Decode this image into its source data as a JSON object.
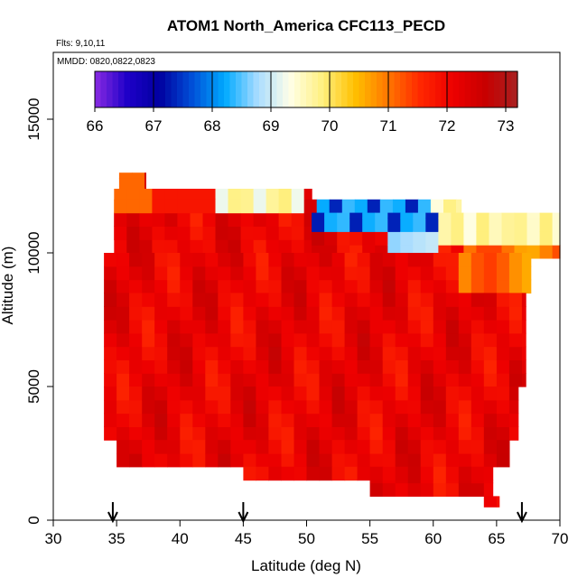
{
  "chart_data": {
    "type": "heatmap",
    "title": "ATOM1 North_America CFC113_PECD",
    "annotations": [
      "Flts: 9,10,11",
      "MMDD: 0820,0822,0823"
    ],
    "xlabel": "Latitude (deg N)",
    "ylabel": "Altitude (m)",
    "xlim": [
      30,
      70
    ],
    "ylim": [
      0,
      17500
    ],
    "xticks": [
      "30",
      "35",
      "40",
      "45",
      "50",
      "55",
      "60",
      "65",
      "70"
    ],
    "yticks": [
      "0",
      "5000",
      "10000",
      "15000"
    ],
    "colorbar": {
      "ticks": [
        "66",
        "67",
        "68",
        "69",
        "70",
        "71",
        "72",
        "73"
      ],
      "range": [
        66,
        73.2
      ],
      "colors": [
        "#8a2be2",
        "#1e00c8",
        "#0000a0",
        "#0050d8",
        "#00aaff",
        "#a8dcff",
        "#ffffe8",
        "#fff080",
        "#ffc000",
        "#ff7800",
        "#ff2800",
        "#ee0000",
        "#c80000",
        "#a82020"
      ]
    },
    "arrow_latitudes": [
      34.7,
      45,
      67
    ],
    "grid": false,
    "legend": "colorbar top-inside"
  }
}
